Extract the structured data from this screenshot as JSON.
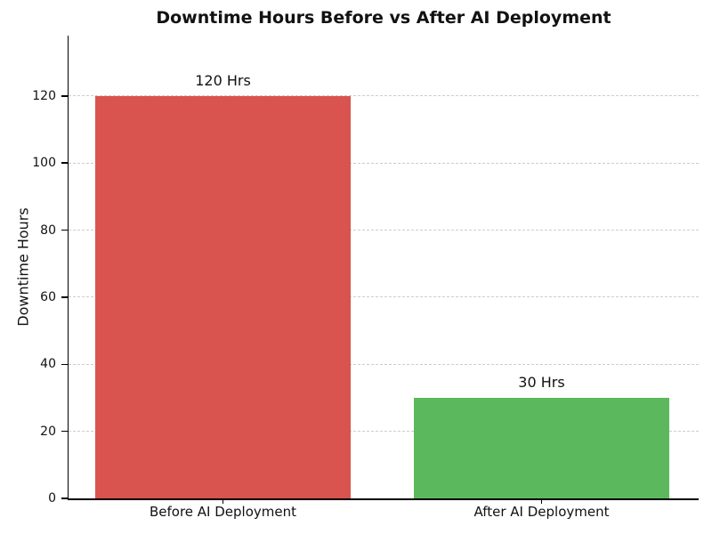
{
  "chart_data": {
    "type": "bar",
    "title": "Downtime Hours Before vs After AI Deployment",
    "ylabel": "Downtime Hours",
    "xlabel": "",
    "categories": [
      "Before AI Deployment",
      "After AI Deployment"
    ],
    "values": [
      120,
      30
    ],
    "bar_value_labels": [
      "120 Hrs",
      "30 Hrs"
    ],
    "bar_colors": [
      "#d9534f",
      "#5cb85c"
    ],
    "yticks": [
      0,
      20,
      40,
      60,
      80,
      100,
      120
    ],
    "ylim": [
      0,
      138
    ],
    "grid": "horizontal-dashed",
    "legend_position": "none"
  },
  "style_colors": {
    "background": "#ffffff",
    "title": "#121212",
    "axis": "#000000",
    "tick_label": "#111111",
    "gridline": "#cccccc"
  }
}
